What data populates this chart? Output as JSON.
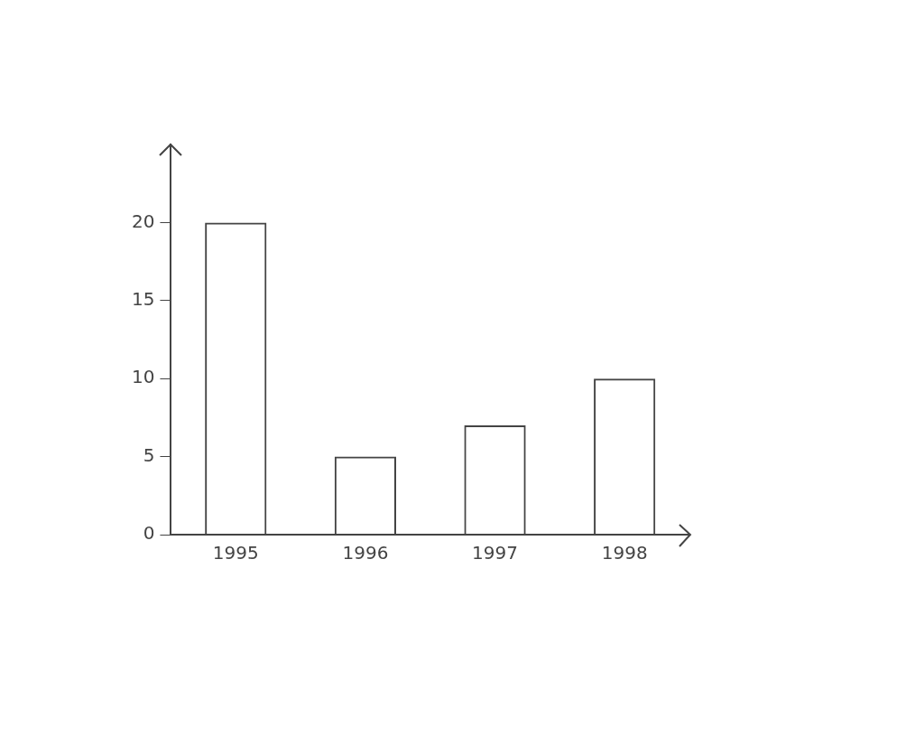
{
  "chart_data": {
    "type": "bar",
    "categories": [
      "1995",
      "1996",
      "1997",
      "1998"
    ],
    "values": [
      20,
      5,
      7,
      10
    ],
    "color": "#444444",
    "ylim": [
      0,
      25
    ],
    "yticks": [
      0,
      5,
      10,
      15,
      20
    ],
    "grid": false,
    "legend": false
  }
}
